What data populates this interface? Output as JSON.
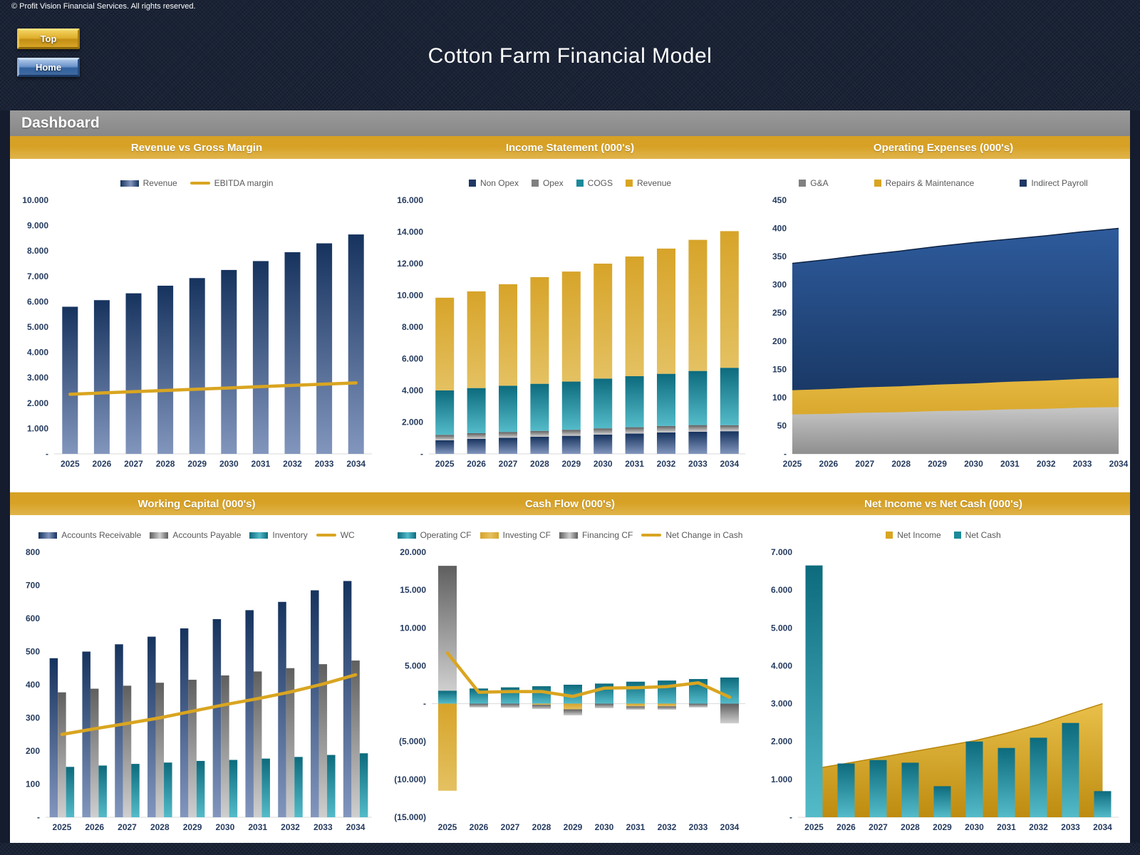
{
  "header": {
    "copyright": "© Profit Vision Financial Services. All rights reserved.",
    "buttons": [
      {
        "label": "Top"
      },
      {
        "label": "Home"
      }
    ],
    "title": "Cotton Farm Financial Model"
  },
  "page_title": "Dashboard",
  "colors": {
    "line": "#d9a521",
    "axis": "#d9d9d9",
    "gradients": {
      "navy": {
        "top": "#16335e",
        "bottom": "#8296bd"
      },
      "gray": {
        "top": "#5f5f5f",
        "bottom": "#cfcfcf"
      },
      "teal": {
        "top": "#0c6b7d",
        "bottom": "#54bbc9"
      },
      "gold": {
        "top": "#d7a429",
        "bottom": "#e4c162"
      },
      "areaNavy": {
        "top": "#2e5b9c",
        "bottom": "#122c52"
      },
      "areaGray": {
        "top": "#c7c7c7",
        "bottom": "#8f8f8f"
      },
      "areaGold": {
        "top": "#e5b840",
        "bottom": "#cd981a"
      },
      "areaGold6": {
        "top": "#e9c04a",
        "bottom": "#bd8c10"
      }
    },
    "legend_squares": {
      "navy": "#1f3864",
      "gray": "#808080",
      "teal": "#1b8a9a",
      "gold": "#d9a521"
    }
  },
  "chart_data": [
    {
      "title": "Revenue vs Gross Margin",
      "type": "bar-line",
      "categories": [
        "2025",
        "2026",
        "2027",
        "2028",
        "2029",
        "2030",
        "2031",
        "2032",
        "2033",
        "2034"
      ],
      "ylim": [
        0,
        10000
      ],
      "ytick": 1000,
      "grid": false,
      "legend_position": "top",
      "series": [
        {
          "name": "Revenue",
          "kind": "bar",
          "color": "navy",
          "values": [
            5800,
            6060,
            6330,
            6630,
            6930,
            7250,
            7600,
            7950,
            8300,
            8650
          ]
        },
        {
          "name": "EBITDA margin",
          "kind": "line",
          "color": "gold",
          "values": [
            2350,
            2400,
            2450,
            2500,
            2550,
            2600,
            2650,
            2700,
            2750,
            2800
          ]
        }
      ],
      "legend": [
        {
          "label": "Revenue",
          "swatch": "bar",
          "color": "navy"
        },
        {
          "label": "EBITDA margin",
          "swatch": "line",
          "color": "gold"
        }
      ]
    },
    {
      "title": "Income Statement (000's)",
      "type": "stacked-bar",
      "categories": [
        "2025",
        "2026",
        "2027",
        "2028",
        "2029",
        "2030",
        "2031",
        "2032",
        "2033",
        "2034"
      ],
      "ylim": [
        0,
        16000
      ],
      "ytick": 2000,
      "grid": false,
      "legend_position": "top",
      "series": [
        {
          "name": "Non Opex",
          "kind": "bar",
          "color": "navy",
          "values": [
            860,
            950,
            1020,
            1080,
            1140,
            1220,
            1280,
            1350,
            1400,
            1430
          ]
        },
        {
          "name": "Opex",
          "kind": "bar",
          "color": "gray",
          "values": [
            340,
            355,
            365,
            370,
            380,
            390,
            400,
            410,
            415,
            380
          ]
        },
        {
          "name": "COGS",
          "kind": "bar",
          "color": "teal",
          "values": [
            2800,
            2845,
            2915,
            2970,
            3040,
            3140,
            3220,
            3290,
            3415,
            3620
          ]
        },
        {
          "name": "Revenue",
          "kind": "bar",
          "color": "gold",
          "values": [
            5850,
            6100,
            6400,
            6730,
            6940,
            7250,
            7550,
            7900,
            8270,
            8620
          ]
        }
      ],
      "legend": [
        {
          "label": "Non Opex",
          "swatch": "square",
          "color": "navy"
        },
        {
          "label": "Opex",
          "swatch": "square",
          "color": "gray"
        },
        {
          "label": "COGS",
          "swatch": "square",
          "color": "teal"
        },
        {
          "label": "Revenue",
          "swatch": "square",
          "color": "gold"
        }
      ]
    },
    {
      "title": "Operating Expenses (000's)",
      "type": "stacked-area",
      "categories": [
        "2025",
        "2026",
        "2027",
        "2028",
        "2029",
        "2030",
        "2031",
        "2032",
        "2033",
        "2034"
      ],
      "ylim": [
        0,
        450
      ],
      "ytick": 50,
      "grid": false,
      "legend_position": "top",
      "series": [
        {
          "name": "G&A",
          "kind": "area",
          "color": "areaGray",
          "values": [
            70,
            71,
            73,
            74,
            76,
            77,
            79,
            80,
            82,
            83
          ]
        },
        {
          "name": "Repairs & Maintenance",
          "kind": "area",
          "color": "areaGold",
          "values": [
            43,
            44,
            45,
            46,
            47,
            48,
            49,
            50,
            51,
            52
          ]
        },
        {
          "name": "Indirect Payroll",
          "kind": "area",
          "color": "areaNavy",
          "values": [
            225,
            230,
            235,
            240,
            245,
            250,
            253,
            257,
            261,
            265
          ]
        }
      ],
      "legend": [
        {
          "label": "G&A",
          "swatch": "square",
          "color": "gray"
        },
        {
          "label": "Repairs & Maintenance",
          "swatch": "square",
          "color": "gold"
        },
        {
          "label": "Indirect Payroll",
          "swatch": "square",
          "color": "navy"
        }
      ]
    },
    {
      "title": "Working Capital (000's)",
      "type": "grouped-bar-line",
      "categories": [
        "2025",
        "2026",
        "2027",
        "2028",
        "2029",
        "2030",
        "2031",
        "2032",
        "2033",
        "2034"
      ],
      "ylim": [
        0,
        800
      ],
      "ytick": 100,
      "grid": false,
      "legend_position": "top",
      "series": [
        {
          "name": "Accounts Receivable",
          "kind": "bar",
          "color": "navy",
          "values": [
            480,
            500,
            522,
            545,
            570,
            598,
            625,
            650,
            685,
            713
          ]
        },
        {
          "name": "Accounts Payable",
          "kind": "bar",
          "color": "gray",
          "values": [
            377,
            388,
            397,
            406,
            415,
            428,
            440,
            450,
            462,
            473
          ]
        },
        {
          "name": "Inventory",
          "kind": "bar",
          "color": "teal",
          "values": [
            152,
            156,
            161,
            165,
            170,
            173,
            177,
            182,
            188,
            193
          ]
        },
        {
          "name": "WC",
          "kind": "line",
          "color": "gold",
          "values": [
            250,
            267,
            283,
            300,
            320,
            340,
            358,
            378,
            402,
            430
          ]
        }
      ],
      "legend": [
        {
          "label": "Accounts Receivable",
          "swatch": "bar",
          "color": "navy"
        },
        {
          "label": "Accounts Payable",
          "swatch": "bar",
          "color": "gray"
        },
        {
          "label": "Inventory",
          "swatch": "bar",
          "color": "teal"
        },
        {
          "label": "WC",
          "swatch": "line",
          "color": "gold"
        }
      ]
    },
    {
      "title": "Cash Flow (000's)",
      "type": "stacked-bar-line",
      "categories": [
        "2025",
        "2026",
        "2027",
        "2028",
        "2029",
        "2030",
        "2031",
        "2032",
        "2033",
        "2034"
      ],
      "ylim": [
        -15000,
        20000
      ],
      "ytick": 5000,
      "grid": false,
      "legend_position": "top",
      "series": [
        {
          "name": "Operating CF",
          "kind": "bar",
          "color": "teal",
          "values": [
            1700,
            2000,
            2150,
            2300,
            2500,
            2650,
            2900,
            3050,
            3250,
            3450
          ]
        },
        {
          "name": "Investing CF",
          "kind": "bar",
          "color": "gold",
          "values": [
            -11500,
            0,
            0,
            -150,
            -750,
            0,
            -350,
            -350,
            0,
            0
          ]
        },
        {
          "name": "Financing CF",
          "kind": "bar",
          "color": "gray",
          "values": [
            16500,
            -500,
            -550,
            -550,
            -800,
            -600,
            -450,
            -450,
            -500,
            -2600
          ]
        },
        {
          "name": "Net Change in Cash",
          "kind": "line",
          "color": "gold",
          "values": [
            6700,
            1500,
            1600,
            1600,
            950,
            2050,
            2100,
            2250,
            2750,
            850
          ]
        }
      ],
      "legend": [
        {
          "label": "Operating CF",
          "swatch": "bar",
          "color": "teal"
        },
        {
          "label": "Investing CF",
          "swatch": "bar",
          "color": "gold"
        },
        {
          "label": "Financing CF",
          "swatch": "bar",
          "color": "gray"
        },
        {
          "label": "Net Change in Cash",
          "swatch": "line",
          "color": "gold"
        }
      ]
    },
    {
      "title": "Net Income vs Net Cash (000's)",
      "type": "area-bar",
      "categories": [
        "2025",
        "2026",
        "2027",
        "2028",
        "2029",
        "2030",
        "2031",
        "2032",
        "2033",
        "2034"
      ],
      "ylim": [
        0,
        7000
      ],
      "ytick": 1000,
      "grid": false,
      "legend_position": "top",
      "series": [
        {
          "name": "Net Income",
          "kind": "area",
          "color": "areaGold6",
          "values": [
            1280,
            1420,
            1570,
            1720,
            1870,
            2020,
            2220,
            2450,
            2730,
            3000
          ]
        },
        {
          "name": "Net Cash",
          "kind": "bar",
          "color": "teal",
          "values": [
            6650,
            1420,
            1510,
            1440,
            820,
            2000,
            1830,
            2100,
            2490,
            690
          ]
        }
      ],
      "legend": [
        {
          "label": "Net Income",
          "swatch": "square",
          "color": "gold"
        },
        {
          "label": "Net Cash",
          "swatch": "square",
          "color": "teal"
        }
      ]
    }
  ]
}
